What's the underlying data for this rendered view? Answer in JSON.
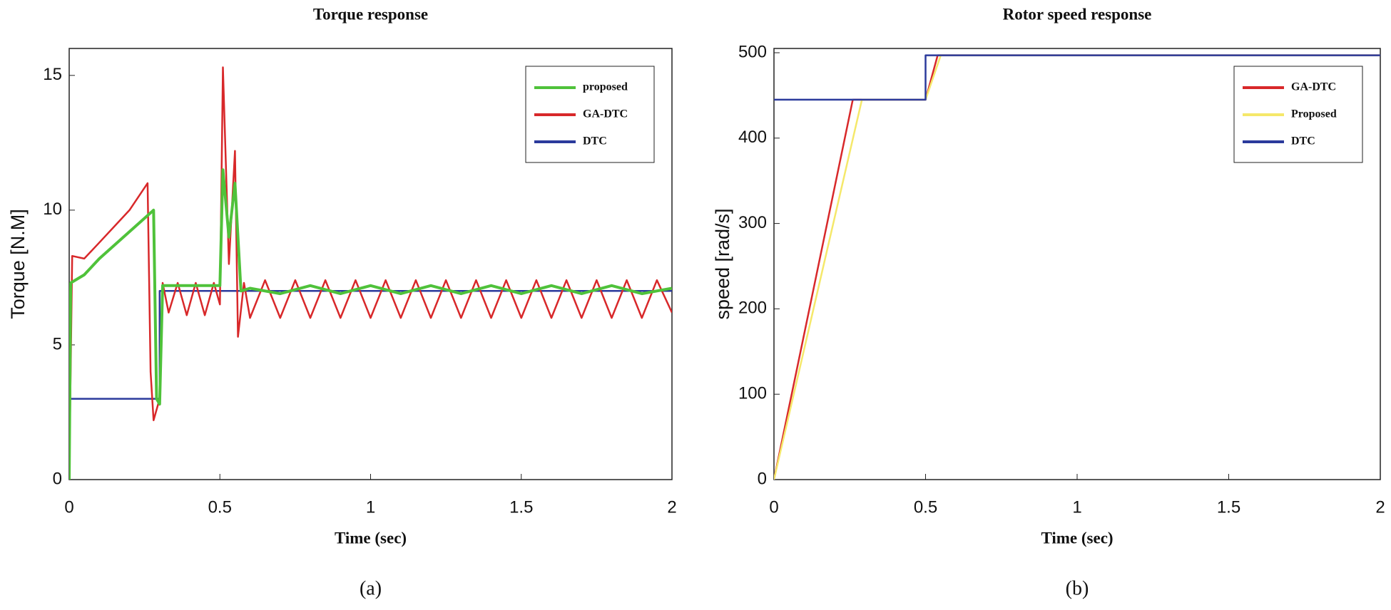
{
  "chart_data": [
    {
      "type": "line",
      "title": "Torque response",
      "xlabel": "Time (sec)",
      "ylabel": "Torque [N.M]",
      "caption": "(a)",
      "xlim": [
        0,
        2
      ],
      "ylim": [
        0,
        16
      ],
      "xticks": [
        0,
        0.5,
        1,
        1.5,
        2
      ],
      "yticks": [
        0,
        5,
        10,
        15
      ],
      "legend": "upper right",
      "series": [
        {
          "name": "proposed",
          "color": "#4fc23a",
          "x": [
            0,
            0.005,
            0.05,
            0.1,
            0.15,
            0.2,
            0.25,
            0.28,
            0.29,
            0.3,
            0.31,
            0.35,
            0.4,
            0.45,
            0.5,
            0.51,
            0.53,
            0.55,
            0.57,
            0.6,
            0.7,
            0.8,
            0.9,
            1.0,
            1.1,
            1.2,
            1.3,
            1.4,
            1.5,
            1.6,
            1.7,
            1.8,
            1.9,
            2.0
          ],
          "values": [
            0,
            7.3,
            7.6,
            8.2,
            8.7,
            9.2,
            9.7,
            10,
            3,
            2.8,
            7.2,
            7.2,
            7.2,
            7.2,
            7.2,
            11.5,
            9,
            11,
            7,
            7.1,
            6.9,
            7.2,
            6.9,
            7.2,
            6.9,
            7.2,
            6.9,
            7.2,
            6.9,
            7.2,
            6.9,
            7.2,
            6.9,
            7.1
          ]
        },
        {
          "name": "GA-DTC",
          "color": "#d8282a",
          "x": [
            0,
            0.01,
            0.05,
            0.1,
            0.15,
            0.2,
            0.26,
            0.27,
            0.28,
            0.3,
            0.31,
            0.33,
            0.36,
            0.39,
            0.42,
            0.45,
            0.48,
            0.5,
            0.51,
            0.53,
            0.55,
            0.56,
            0.58,
            0.6,
            0.65,
            0.7,
            0.75,
            0.8,
            0.85,
            0.9,
            0.95,
            1.0,
            1.05,
            1.1,
            1.15,
            1.2,
            1.25,
            1.3,
            1.35,
            1.4,
            1.45,
            1.5,
            1.55,
            1.6,
            1.65,
            1.7,
            1.75,
            1.8,
            1.85,
            1.9,
            1.95,
            2.0
          ],
          "values": [
            0,
            8.3,
            8.2,
            8.8,
            9.4,
            10,
            11,
            4,
            2.2,
            3,
            7.3,
            6.2,
            7.3,
            6.1,
            7.3,
            6.1,
            7.3,
            6.5,
            15.3,
            8,
            12.2,
            5.3,
            7.3,
            6,
            7.4,
            6,
            7.4,
            6,
            7.4,
            6,
            7.4,
            6,
            7.4,
            6,
            7.4,
            6,
            7.4,
            6,
            7.4,
            6,
            7.4,
            6,
            7.4,
            6,
            7.4,
            6,
            7.4,
            6,
            7.4,
            6,
            7.4,
            6.2
          ]
        },
        {
          "name": "DTC",
          "color": "#2b3a9c",
          "x": [
            0,
            0.3,
            0.3,
            2
          ],
          "values": [
            3,
            3,
            7,
            7
          ]
        }
      ]
    },
    {
      "type": "line",
      "title": "Rotor speed response",
      "xlabel": "Time (sec)",
      "ylabel": "speed [rad/s]",
      "caption": "(b)",
      "xlim": [
        0,
        2
      ],
      "ylim": [
        0,
        505
      ],
      "xticks": [
        0,
        0.5,
        1,
        1.5,
        2
      ],
      "yticks": [
        0,
        100,
        200,
        300,
        400,
        500
      ],
      "legend": "upper right",
      "series": [
        {
          "name": "GA-DTC",
          "color": "#d8282a",
          "x": [
            0,
            0.26,
            0.5,
            0.54,
            2
          ],
          "values": [
            0,
            445,
            445,
            497,
            497
          ]
        },
        {
          "name": "Proposed",
          "color": "#f5e86a",
          "x": [
            0,
            0.29,
            0.5,
            0.55,
            2
          ],
          "values": [
            0,
            445,
            445,
            497,
            497
          ]
        },
        {
          "name": "DTC",
          "color": "#2b3a9c",
          "x": [
            0,
            0.5,
            0.5,
            2
          ],
          "values": [
            445,
            445,
            497,
            497
          ]
        }
      ]
    }
  ]
}
